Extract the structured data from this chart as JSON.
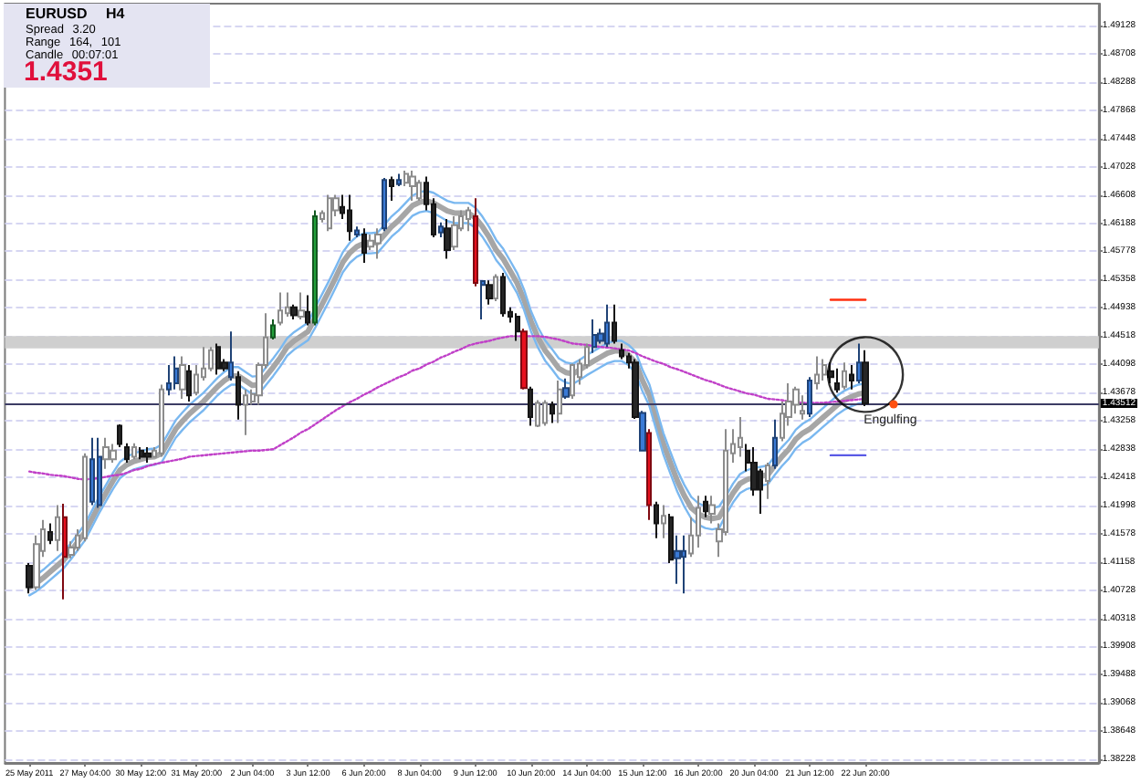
{
  "chart_data": {
    "type": "candlestick",
    "title": "EURUSD H4",
    "annotations": [
      "Spread 3.20",
      "Range 164, 101",
      "Candle 00:07:01",
      "1.4351",
      {
        "text": "Engulfing",
        "x": "22 Jun 20:00",
        "y": 1.4347
      }
    ],
    "categories": [
      "25 May 2011",
      null,
      null,
      null,
      null,
      null,
      null,
      null,
      "27 May 04:00",
      null,
      null,
      null,
      null,
      null,
      null,
      null,
      "30 May 12:00",
      null,
      null,
      null,
      null,
      null,
      null,
      null,
      "31 May 20:00",
      null,
      null,
      null,
      null,
      null,
      null,
      null,
      "2 Jun 04:00",
      null,
      null,
      null,
      null,
      null,
      null,
      null,
      "3 Jun 12:00",
      null,
      null,
      null,
      null,
      null,
      null,
      null,
      "6 Jun 20:00",
      null,
      null,
      null,
      null,
      null,
      null,
      null,
      "8 Jun 04:00",
      null,
      null,
      null,
      null,
      null,
      null,
      null,
      "9 Jun 12:00",
      null,
      null,
      null,
      null,
      null,
      null,
      null,
      "10 Jun 20:00",
      null,
      null,
      null,
      null,
      null,
      null,
      null,
      "14 Jun 04:00",
      null,
      null,
      null,
      null,
      null,
      null,
      null,
      "15 Jun 12:00",
      null,
      null,
      null,
      null,
      null,
      null,
      null,
      "16 Jun 20:00",
      null,
      null,
      null,
      null,
      null,
      null,
      null,
      "20 Jun 04:00",
      null,
      null,
      null,
      null,
      null,
      null,
      null,
      "21 Jun 12:00",
      null,
      null,
      null,
      null,
      null,
      null,
      null,
      "22 Jun 20:00"
    ],
    "ohlc": [
      [
        1.411,
        1.4114,
        1.4069,
        1.4078
      ],
      [
        1.4078,
        1.4155,
        1.4074,
        1.4142
      ],
      [
        1.4132,
        1.4178,
        1.4123,
        1.4164
      ],
      [
        1.416,
        1.4173,
        1.4142,
        1.4148
      ],
      [
        1.4148,
        1.42,
        1.4132,
        1.4182
      ],
      [
        1.4182,
        1.4202,
        1.406,
        1.4123
      ],
      [
        1.4126,
        1.4146,
        1.4121,
        1.4137
      ],
      [
        1.4137,
        1.4164,
        1.4132,
        1.4155
      ],
      [
        1.4151,
        1.4277,
        1.4146,
        1.4272
      ],
      [
        1.4268,
        1.43,
        1.42,
        1.4205
      ],
      [
        1.42,
        1.43,
        1.4196,
        1.4272
      ],
      [
        1.4268,
        1.43,
        1.4254,
        1.4286
      ],
      [
        1.4268,
        1.4291,
        1.4263,
        1.4281
      ],
      [
        1.4318,
        1.432,
        1.4286,
        1.4291
      ],
      [
        1.4286,
        1.4292,
        1.4263,
        1.4268
      ],
      [
        1.4272,
        1.4292,
        1.4268,
        1.4286
      ],
      [
        1.4281,
        1.4286,
        1.4268,
        1.4272
      ],
      [
        1.4277,
        1.4286,
        1.4263,
        1.4272
      ],
      [
        1.4272,
        1.4286,
        1.4271,
        1.4281
      ],
      [
        1.4277,
        1.4379,
        1.4272,
        1.4372
      ],
      [
        1.4372,
        1.4408,
        1.4363,
        1.4381
      ],
      [
        1.4381,
        1.4421,
        1.4372,
        1.4403
      ],
      [
        1.4372,
        1.4421,
        1.4358,
        1.4408
      ],
      [
        1.4399,
        1.4408,
        1.4354,
        1.4363
      ],
      [
        1.4367,
        1.4408,
        1.4363,
        1.4394
      ],
      [
        1.439,
        1.4435,
        1.4385,
        1.4403
      ],
      [
        1.4403,
        1.4435,
        1.4399,
        1.443
      ],
      [
        1.4435,
        1.444,
        1.4394,
        1.4403
      ],
      [
        1.4412,
        1.4417,
        1.4399,
        1.4403
      ],
      [
        1.4412,
        1.4458,
        1.4385,
        1.439
      ],
      [
        1.439,
        1.4399,
        1.4327,
        1.4349
      ],
      [
        1.4349,
        1.4372,
        1.4304,
        1.4363
      ],
      [
        1.4354,
        1.4372,
        1.4349,
        1.4365
      ],
      [
        1.4363,
        1.4412,
        1.4349,
        1.4408
      ],
      [
        1.4408,
        1.4485,
        1.4403,
        1.4449
      ],
      [
        1.4449,
        1.4476,
        1.4446,
        1.4467
      ],
      [
        1.4471,
        1.4516,
        1.4467,
        1.4489
      ],
      [
        1.4485,
        1.4516,
        1.448,
        1.4494
      ],
      [
        1.4494,
        1.4498,
        1.4476,
        1.4482
      ],
      [
        1.448,
        1.4516,
        1.4476,
        1.4489
      ],
      [
        1.4487,
        1.4512,
        1.4467,
        1.4471
      ],
      [
        1.4471,
        1.4638,
        1.4467,
        1.4629
      ],
      [
        1.4625,
        1.4638,
        1.462,
        1.4634
      ],
      [
        1.4611,
        1.4661,
        1.4607,
        1.4656
      ],
      [
        1.4638,
        1.4661,
        1.4629,
        1.4656
      ],
      [
        1.4643,
        1.4661,
        1.4625,
        1.4634
      ],
      [
        1.4638,
        1.4661,
        1.4593,
        1.4607
      ],
      [
        1.4608,
        1.4614,
        1.4598,
        1.4602
      ],
      [
        1.4602,
        1.4611,
        1.456,
        1.4575
      ],
      [
        1.4584,
        1.4602,
        1.4579,
        1.4593
      ],
      [
        1.4589,
        1.4611,
        1.4566,
        1.4602
      ],
      [
        1.4611,
        1.4686,
        1.4607,
        1.4683
      ],
      [
        1.4683,
        1.4688,
        1.4652,
        1.4674
      ],
      [
        1.4677,
        1.4692,
        1.4674,
        1.4683
      ],
      [
        1.4679,
        1.4697,
        1.4674,
        1.4692
      ],
      [
        1.4674,
        1.4697,
        1.4652,
        1.4688
      ],
      [
        1.4656,
        1.4683,
        1.4652,
        1.4679
      ],
      [
        1.4679,
        1.4688,
        1.4638,
        1.4647
      ],
      [
        1.4647,
        1.4656,
        1.4598,
        1.4602
      ],
      [
        1.4614,
        1.462,
        1.4598,
        1.4605
      ],
      [
        1.4611,
        1.4625,
        1.4566,
        1.4579
      ],
      [
        1.4584,
        1.4629,
        1.4579,
        1.4616
      ],
      [
        1.4611,
        1.4638,
        1.4607,
        1.4629
      ],
      [
        1.4625,
        1.4643,
        1.4607,
        1.4638
      ],
      [
        1.4629,
        1.4656,
        1.4525,
        1.453
      ],
      [
        1.4533,
        1.4534,
        1.4476,
        1.4527
      ],
      [
        1.4527,
        1.4534,
        1.4498,
        1.4507
      ],
      [
        1.4507,
        1.4543,
        1.4503,
        1.4539
      ],
      [
        1.4539,
        1.4545,
        1.448,
        1.4485
      ],
      [
        1.4487,
        1.4494,
        1.4471,
        1.448
      ],
      [
        1.448,
        1.4485,
        1.4444,
        1.4458
      ],
      [
        1.4458,
        1.4462,
        1.4372,
        1.4374
      ],
      [
        1.4372,
        1.4376,
        1.4318,
        1.4331
      ],
      [
        1.4318,
        1.4356,
        1.4316,
        1.4352
      ],
      [
        1.4322,
        1.4356,
        1.4318,
        1.4352
      ],
      [
        1.4349,
        1.4354,
        1.4322,
        1.4336
      ],
      [
        1.4336,
        1.4385,
        1.4322,
        1.4372
      ],
      [
        1.4361,
        1.4388,
        1.4358,
        1.4374
      ],
      [
        1.4363,
        1.441,
        1.4358,
        1.4408
      ],
      [
        1.439,
        1.4417,
        1.4379,
        1.441
      ],
      [
        1.4408,
        1.444,
        1.4403,
        1.4435
      ],
      [
        1.4435,
        1.4476,
        1.4426,
        1.4453
      ],
      [
        1.4455,
        1.4462,
        1.444,
        1.4444
      ],
      [
        1.444,
        1.4498,
        1.4435,
        1.4471
      ],
      [
        1.4471,
        1.4498,
        1.444,
        1.4444
      ],
      [
        1.443,
        1.444,
        1.4417,
        1.4421
      ],
      [
        1.4421,
        1.4426,
        1.4403,
        1.4412
      ],
      [
        1.4412,
        1.4417,
        1.4328,
        1.4331
      ],
      [
        1.4337,
        1.434,
        1.428,
        1.4281
      ],
      [
        1.4307,
        1.4313,
        1.4178,
        1.42
      ],
      [
        1.42,
        1.4205,
        1.4151,
        1.4173
      ],
      [
        1.4173,
        1.42,
        1.4151,
        1.4184
      ],
      [
        1.4182,
        1.4187,
        1.4114,
        1.4119
      ],
      [
        1.4121,
        1.4155,
        1.4083,
        1.4132
      ],
      [
        1.4123,
        1.4155,
        1.4069,
        1.4132
      ],
      [
        1.4128,
        1.4182,
        1.4123,
        1.4155
      ],
      [
        1.4155,
        1.4214,
        1.4137,
        1.4196
      ],
      [
        1.4205,
        1.4214,
        1.4182,
        1.4191
      ],
      [
        1.4187,
        1.4214,
        1.4173,
        1.42
      ],
      [
        1.4146,
        1.4173,
        1.4123,
        1.4164
      ],
      [
        1.416,
        1.4313,
        1.4155,
        1.4281
      ],
      [
        1.4277,
        1.4313,
        1.4263,
        1.4291
      ],
      [
        1.4286,
        1.4331,
        1.4272,
        1.43
      ],
      [
        1.4281,
        1.4291,
        1.425,
        1.4263
      ],
      [
        1.4263,
        1.4286,
        1.4214,
        1.4223
      ],
      [
        1.425,
        1.4254,
        1.4187,
        1.4223
      ],
      [
        1.4236,
        1.4263,
        1.4209,
        1.4259
      ],
      [
        1.4259,
        1.4327,
        1.4254,
        1.43
      ],
      [
        1.43,
        1.4354,
        1.4295,
        1.4336
      ],
      [
        1.4331,
        1.4381,
        1.4318,
        1.4354
      ],
      [
        1.4349,
        1.4376,
        1.4336,
        1.4372
      ],
      [
        1.4336,
        1.4363,
        1.4327,
        1.434
      ],
      [
        1.4336,
        1.439,
        1.4331,
        1.4385
      ],
      [
        1.4381,
        1.4421,
        1.4372,
        1.4394
      ],
      [
        1.4394,
        1.4417,
        1.4385,
        1.4408
      ],
      [
        1.4399,
        1.4412,
        1.4381,
        1.439
      ],
      [
        1.4381,
        1.4403,
        1.4367,
        1.4372
      ],
      [
        1.4376,
        1.4412,
        1.4372,
        1.4399
      ],
      [
        1.4394,
        1.4408,
        1.4372,
        1.4385
      ],
      [
        1.4385,
        1.444,
        1.4381,
        1.4412
      ],
      [
        1.4412,
        1.443,
        1.4347,
        1.4351
      ]
    ],
    "colors": [
      "#262626",
      "#ffffff",
      "#ffffff",
      "#262626",
      "#ffffff",
      "#e8101e",
      "#ffffff",
      "#ffffff",
      "#ffffff",
      "#3a7ad6",
      "#3a7ad6",
      "#ffffff",
      "#ffffff",
      "#262626",
      "#262626",
      "#ffffff",
      "#262626",
      "#262626",
      "#ffffff",
      "#ffffff",
      "#3a7ad6",
      "#3a7ad6",
      "#ffffff",
      "#262626",
      "#ffffff",
      "#ffffff",
      "#ffffff",
      "#262626",
      "#262626",
      "#3a7ad6",
      "#262626",
      "#ffffff",
      "#ffffff",
      "#ffffff",
      "#ffffff",
      "#22a03a",
      "#ffffff",
      "#ffffff",
      "#262626",
      "#ffffff",
      "#262626",
      "#22a03a",
      "#ffffff",
      "#ffffff",
      "#ffffff",
      "#262626",
      "#262626",
      "#3a7ad6",
      "#262626",
      "#ffffff",
      "#ffffff",
      "#3a7ad6",
      "#262626",
      "#3a7ad6",
      "#ffffff",
      "#ffffff",
      "#ffffff",
      "#262626",
      "#262626",
      "#3a7ad6",
      "#262626",
      "#ffffff",
      "#ffffff",
      "#ffffff",
      "#e8101e",
      "#3a7ad6",
      "#262626",
      "#ffffff",
      "#262626",
      "#262626",
      "#262626",
      "#e8101e",
      "#262626",
      "#ffffff",
      "#ffffff",
      "#262626",
      "#ffffff",
      "#3a7ad6",
      "#ffffff",
      "#ffffff",
      "#ffffff",
      "#3a7ad6",
      "#3a7ad6",
      "#3a7ad6",
      "#262626",
      "#262626",
      "#262626",
      "#262626",
      "#3a7ad6",
      "#e8101e",
      "#262626",
      "#ffffff",
      "#262626",
      "#3a7ad6",
      "#3a7ad6",
      "#ffffff",
      "#ffffff",
      "#262626",
      "#ffffff",
      "#ffffff",
      "#ffffff",
      "#ffffff",
      "#ffffff",
      "#262626",
      "#262626",
      "#262626",
      "#ffffff",
      "#3a7ad6",
      "#ffffff",
      "#ffffff",
      "#ffffff",
      "#ffffff",
      "#3a7ad6",
      "#ffffff",
      "#ffffff",
      "#262626",
      "#262626",
      "#ffffff",
      "#262626",
      "#3a7ad6",
      "#262626"
    ],
    "series": [
      {
        "type": "line",
        "color": "#a6a6a6",
        "values": [
          1.4078,
          1.4084,
          1.4092,
          1.4101,
          1.411,
          1.4119,
          1.4132,
          1.4146,
          1.416,
          1.418,
          1.42,
          1.4218,
          1.4236,
          1.4252,
          1.426,
          1.4265,
          1.4268,
          1.4271,
          1.4272,
          1.4277,
          1.4295,
          1.4313,
          1.4325,
          1.4336,
          1.4345,
          1.4354,
          1.4365,
          1.4376,
          1.4385,
          1.4392,
          1.4392,
          1.4385,
          1.4378,
          1.4379,
          1.4392,
          1.4405,
          1.4419,
          1.4435,
          1.4444,
          1.4451,
          1.4458,
          1.4478,
          1.4498,
          1.4518,
          1.4539,
          1.4561,
          1.4575,
          1.4584,
          1.4589,
          1.4589,
          1.459,
          1.4602,
          1.4614,
          1.4623,
          1.4634,
          1.4645,
          1.465,
          1.4652,
          1.4649,
          1.4643,
          1.4637,
          1.4634,
          1.4634,
          1.4634,
          1.4627,
          1.4614,
          1.4598,
          1.4579,
          1.4566,
          1.4548,
          1.453,
          1.4505,
          1.4473,
          1.4449,
          1.443,
          1.4417,
          1.4403,
          1.4397,
          1.4395,
          1.4401,
          1.4408,
          1.4414,
          1.442,
          1.4426,
          1.4429,
          1.4429,
          1.4423,
          1.4412,
          1.4385,
          1.4363,
          1.4327,
          1.4291,
          1.4263,
          1.4236,
          1.4214,
          1.4196,
          1.4187,
          1.4182,
          1.418,
          1.4182,
          1.42,
          1.4218,
          1.4232,
          1.4238,
          1.4241,
          1.4243,
          1.4245,
          1.4259,
          1.4272,
          1.4283,
          1.4298,
          1.4307,
          1.4313,
          1.4322,
          1.4331,
          1.434,
          1.4349,
          1.4356,
          1.4361,
          1.4365,
          1.4367
        ]
      },
      {
        "type": "line",
        "color": "#7ab8f0",
        "values": [
          null,
          1.4096,
          1.4104,
          1.4113,
          1.4122,
          1.4131,
          1.4144,
          1.4158,
          1.4172,
          1.4192,
          1.4212,
          1.423,
          1.4248,
          1.4264,
          1.4272,
          1.4277,
          1.428,
          1.4283,
          1.4284,
          1.429,
          1.4308,
          1.4326,
          1.4338,
          1.4349,
          1.4358,
          1.4367,
          1.4378,
          1.4389,
          1.4398,
          1.4405,
          1.4405,
          1.4398,
          1.4391,
          1.4392,
          1.4405,
          1.4418,
          1.4432,
          1.4448,
          1.4457,
          1.4464,
          1.4471,
          1.4493,
          1.4513,
          1.4533,
          1.4554,
          1.4576,
          1.459,
          1.4599,
          1.4604,
          1.4604,
          1.4605,
          1.4617,
          1.4629,
          1.4638,
          1.4649,
          1.466,
          1.4665,
          1.4667,
          1.4664,
          1.4658,
          1.4652,
          1.4649,
          1.4649,
          1.4649,
          1.4642,
          1.4629,
          1.4613,
          1.4594,
          1.4581,
          1.4563,
          1.4545,
          1.452,
          1.4488,
          1.4464,
          1.4445,
          1.4432,
          1.4418,
          1.4412,
          1.441,
          1.4416,
          1.4423,
          1.4429,
          1.4435,
          1.4441,
          1.4444,
          1.4444,
          1.4438,
          1.4428,
          1.4401,
          1.4379,
          1.4343,
          1.4307,
          1.4279,
          1.4252,
          1.423,
          1.4212,
          1.4203,
          1.4198,
          1.4196,
          1.4198,
          1.4214,
          1.4232,
          1.4246,
          1.4252,
          1.4255,
          1.4257,
          1.4259,
          1.4273,
          1.4286,
          1.4297,
          1.4312,
          1.4321,
          1.4327,
          1.4336,
          1.4345,
          1.4354,
          1.4363,
          1.437,
          1.4375,
          1.4379,
          1.4381
        ]
      },
      {
        "type": "line",
        "color": "#7ab8f0",
        "values": [
          1.4066,
          1.4072,
          1.408,
          1.4089,
          1.4098,
          1.4107,
          1.412,
          1.4134,
          1.4148,
          1.4168,
          1.4188,
          1.4206,
          1.4224,
          1.424,
          1.4248,
          1.4253,
          1.4256,
          1.4259,
          1.426,
          1.4264,
          1.4282,
          1.43,
          1.4312,
          1.4323,
          1.4332,
          1.4341,
          1.4352,
          1.4363,
          1.4372,
          1.4379,
          1.4379,
          1.4372,
          1.4365,
          1.4366,
          1.4379,
          1.4392,
          1.4406,
          1.4422,
          1.4431,
          1.4438,
          1.4445,
          1.4463,
          1.4483,
          1.4503,
          1.4524,
          1.4546,
          1.456,
          1.4569,
          1.4574,
          1.4574,
          1.4575,
          1.4587,
          1.4599,
          1.4608,
          1.4619,
          1.463,
          1.4635,
          1.4637,
          1.4634,
          1.4628,
          1.4622,
          1.4619,
          1.4619,
          1.4619,
          1.4612,
          1.4599,
          1.4583,
          1.4564,
          1.4551,
          1.4533,
          1.4515,
          1.449,
          1.4458,
          1.4434,
          1.4415,
          1.4402,
          1.4388,
          1.4382,
          1.438,
          1.4386,
          1.4393,
          1.4399,
          1.4405,
          1.4411,
          1.4414,
          1.4414,
          1.4408,
          1.4396,
          1.4369,
          1.4347,
          1.4311,
          1.4275,
          1.4247,
          1.422,
          1.4198,
          1.418,
          1.4171,
          1.4166,
          1.4164,
          1.4166,
          1.4186,
          1.4204,
          1.4218,
          1.4224,
          1.4227,
          1.4229,
          1.4231,
          1.4245,
          1.4258,
          1.4269,
          1.4284,
          1.4293,
          1.4299,
          1.4308,
          1.4317,
          1.4326,
          1.4335,
          1.4342,
          1.4347,
          1.4351,
          1.4353
        ]
      },
      {
        "type": "line",
        "color": "#c040c8",
        "line_style": "dotted",
        "values": [
          1.425,
          1.4248,
          1.4247,
          1.4245,
          1.4244,
          1.4243,
          1.4241,
          1.4239,
          1.4238,
          1.4239,
          1.424,
          1.4242,
          1.4244,
          1.4245,
          1.4248,
          1.4252,
          1.4254,
          1.4258,
          1.4261,
          1.4263,
          1.4265,
          1.4267,
          1.4269,
          1.4272,
          1.4273,
          1.4274,
          1.4275,
          1.4276,
          1.4277,
          1.4278,
          1.4279,
          1.428,
          1.4281,
          1.4281,
          1.4282,
          1.4283,
          1.4289,
          1.4295,
          1.4301,
          1.4308,
          1.4313,
          1.432,
          1.4327,
          1.4334,
          1.4341,
          1.4347,
          1.4353,
          1.4358,
          1.4364,
          1.4369,
          1.4375,
          1.438,
          1.4385,
          1.439,
          1.4394,
          1.44,
          1.4403,
          1.4409,
          1.4413,
          1.4419,
          1.4423,
          1.4428,
          1.4432,
          1.4437,
          1.444,
          1.4442,
          1.4444,
          1.4447,
          1.4449,
          1.4451,
          1.4451,
          1.4451,
          1.4451,
          1.4451,
          1.445,
          1.4448,
          1.4446,
          1.4443,
          1.444,
          1.4439,
          1.4438,
          1.4436,
          1.4435,
          1.4434,
          1.4433,
          1.4431,
          1.443,
          1.4426,
          1.4421,
          1.4417,
          1.4413,
          1.441,
          1.4405,
          1.4402,
          1.4398,
          1.4394,
          1.439,
          1.4386,
          1.4383,
          1.4379,
          1.4375,
          1.4372,
          1.4369,
          1.4366,
          1.4364,
          1.4361,
          1.4358,
          1.4357,
          1.4356,
          1.4354,
          1.4353,
          1.4352,
          1.4352,
          1.4352,
          1.4352,
          1.4353,
          1.4354,
          1.4355,
          1.4356,
          1.4357,
          1.4358
        ]
      },
      {
        "type": "line",
        "color": "#ff3010",
        "values": [
          null,
          null,
          null,
          null,
          null,
          null,
          null,
          null,
          null,
          null,
          null,
          null,
          null,
          null,
          null,
          null,
          null,
          null,
          null,
          null,
          null,
          null,
          null,
          null,
          null,
          null,
          null,
          null,
          null,
          null,
          null,
          null,
          null,
          null,
          null,
          null,
          null,
          null,
          null,
          null,
          null,
          null,
          null,
          null,
          null,
          null,
          null,
          null,
          null,
          null,
          null,
          null,
          null,
          null,
          null,
          null,
          null,
          null,
          null,
          null,
          null,
          null,
          null,
          null,
          null,
          null,
          null,
          null,
          null,
          null,
          null,
          null,
          null,
          null,
          null,
          null,
          null,
          null,
          null,
          null,
          null,
          null,
          null,
          null,
          null,
          null,
          null,
          null,
          null,
          null,
          null,
          null,
          null,
          null,
          null,
          null,
          null,
          null,
          null,
          null,
          null,
          null,
          null,
          null,
          null,
          null,
          null,
          null,
          null,
          null,
          null,
          null,
          null,
          null,
          null,
          1.4505,
          1.4505,
          1.4505,
          1.4505,
          1.4505,
          1.4505
        ]
      },
      {
        "type": "line",
        "color": "#5a5ae6",
        "values": [
          null,
          null,
          null,
          null,
          null,
          null,
          null,
          null,
          null,
          null,
          null,
          null,
          null,
          null,
          null,
          null,
          null,
          null,
          null,
          null,
          null,
          null,
          null,
          null,
          null,
          null,
          null,
          null,
          null,
          null,
          null,
          null,
          null,
          null,
          null,
          null,
          null,
          null,
          null,
          null,
          null,
          null,
          null,
          null,
          null,
          null,
          null,
          null,
          null,
          null,
          null,
          null,
          null,
          null,
          null,
          null,
          null,
          null,
          null,
          null,
          null,
          null,
          null,
          null,
          null,
          null,
          null,
          null,
          null,
          null,
          null,
          null,
          null,
          null,
          null,
          null,
          null,
          null,
          null,
          null,
          null,
          null,
          null,
          null,
          null,
          null,
          null,
          null,
          null,
          null,
          null,
          null,
          null,
          null,
          null,
          null,
          null,
          null,
          null,
          null,
          null,
          null,
          null,
          null,
          null,
          null,
          null,
          null,
          null,
          null,
          null,
          null,
          null,
          null,
          null,
          1.4274,
          1.4274,
          1.4274,
          1.4274,
          1.4274,
          1.4274
        ]
      },
      {
        "type": "scatter",
        "color": "#000000",
        "marker": "circle",
        "values": [
          null,
          null,
          null,
          null,
          null,
          null,
          null,
          null,
          null,
          null,
          null,
          null,
          null,
          null,
          null,
          null,
          null,
          null,
          null,
          null,
          null,
          null,
          null,
          null,
          null,
          null,
          null,
          null,
          null,
          null,
          null,
          null,
          null,
          null,
          null,
          null,
          null,
          null,
          null,
          null,
          null,
          null,
          null,
          null,
          null,
          null,
          null,
          null,
          null,
          null,
          null,
          null,
          null,
          null,
          null,
          null,
          null,
          null,
          null,
          null,
          null,
          null,
          null,
          null,
          null,
          null,
          null,
          null,
          null,
          null,
          null,
          null,
          null,
          null,
          null,
          null,
          null,
          null,
          null,
          null,
          null,
          null,
          null,
          null,
          null,
          null,
          null,
          null,
          null,
          null,
          null,
          null,
          null,
          null,
          null,
          null,
          null,
          null,
          null,
          null,
          null,
          null,
          null,
          null,
          null,
          null,
          null,
          null,
          null,
          null,
          null,
          null,
          null,
          null,
          null,
          null,
          null,
          null,
          null,
          null,
          1.4394
        ]
      }
    ],
    "ylim": [
      1.3817,
      1.4945
    ],
    "yticks": [
      1.49128,
      1.48708,
      1.48288,
      1.47868,
      1.47448,
      1.47028,
      1.46608,
      1.46188,
      1.45778,
      1.45358,
      1.44938,
      1.44518,
      1.44098,
      1.43678,
      1.43258,
      1.42838,
      1.42418,
      1.41998,
      1.41578,
      1.41158,
      1.40728,
      1.40318,
      1.39908,
      1.39488,
      1.39068,
      1.38648,
      1.38228
    ],
    "grid": "y",
    "marker": "none",
    "ref_lines": [
      {
        "axis": "y",
        "value": 1.43512,
        "label": "1.43512",
        "color": "#3c3c64"
      }
    ],
    "bands": [
      {
        "axis": "y",
        "from": 1.4433,
        "to": 1.4451,
        "color": "#cfcfcf"
      }
    ]
  }
}
